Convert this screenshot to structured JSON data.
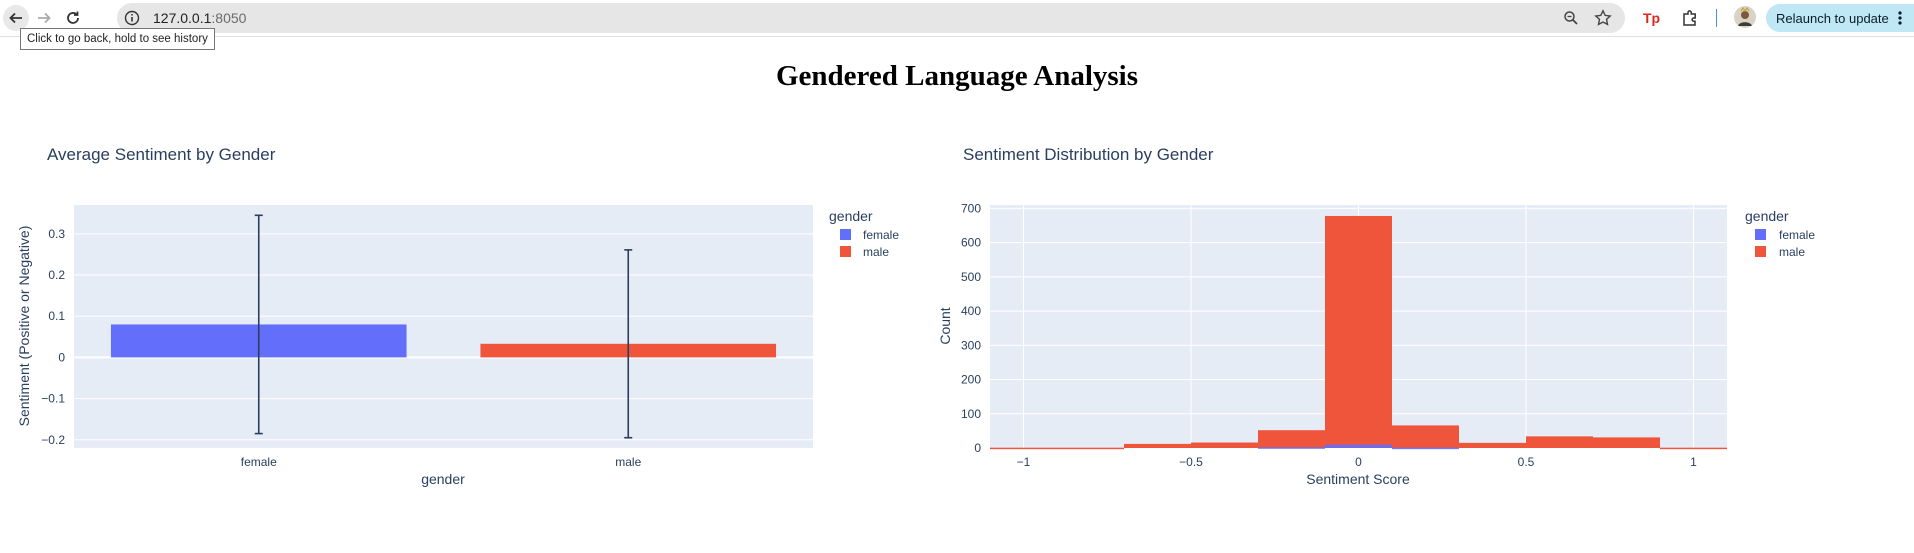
{
  "browser": {
    "url_host": "127.0.0.1",
    "url_port": ":8050",
    "relaunch_label": "Relaunch to update",
    "back_tooltip": "Click to go back, hold to see history"
  },
  "page": {
    "title": "Gendered Language Analysis"
  },
  "colors": {
    "female": "#636efa",
    "male": "#ef553b",
    "plot_bg": "#e5ecf6",
    "text": "#2a3f5f"
  },
  "chart_data": [
    {
      "type": "bar",
      "title": "Average Sentiment by Gender",
      "xlabel": "gender",
      "ylabel": "Sentiment (Positive or Negative)",
      "categories": [
        "female",
        "male"
      ],
      "series": [
        {
          "name": "female",
          "values": [
            0.08,
            null
          ],
          "error": [
            0.265,
            null
          ]
        },
        {
          "name": "male",
          "values": [
            null,
            0.033
          ],
          "error": [
            null,
            0.228
          ]
        }
      ],
      "ylim": [
        -0.22,
        0.37
      ],
      "yticks": [
        -0.2,
        -0.1,
        0,
        0.1,
        0.2,
        0.3
      ],
      "ytick_labels": [
        "−0.2",
        "−0.1",
        "0",
        "0.1",
        "0.2",
        "0.3"
      ],
      "legend_title": "gender",
      "legend": [
        "female",
        "male"
      ],
      "legend_position": "right",
      "grid": true
    },
    {
      "type": "bar",
      "title": "Sentiment Distribution by Gender",
      "xlabel": "Sentiment Score",
      "ylabel": "Count",
      "bins": [
        {
          "x0": -1.1,
          "x1": -0.9,
          "male": 1,
          "female": 0
        },
        {
          "x0": -0.9,
          "x1": -0.7,
          "male": 1,
          "female": 0
        },
        {
          "x0": -0.7,
          "x1": -0.5,
          "male": 12,
          "female": 0
        },
        {
          "x0": -0.5,
          "x1": -0.3,
          "male": 16,
          "female": 0
        },
        {
          "x0": -0.3,
          "x1": -0.1,
          "male": 52,
          "female": 2
        },
        {
          "x0": -0.1,
          "x1": 0.1,
          "male": 678,
          "female": 10
        },
        {
          "x0": 0.1,
          "x1": 0.3,
          "male": 66,
          "female": 1
        },
        {
          "x0": 0.3,
          "x1": 0.5,
          "male": 15,
          "female": 0
        },
        {
          "x0": 0.5,
          "x1": 0.7,
          "male": 34,
          "female": 0
        },
        {
          "x0": 0.7,
          "x1": 0.9,
          "male": 31,
          "female": 0
        },
        {
          "x0": 0.9,
          "x1": 1.1,
          "male": 1,
          "female": 0
        }
      ],
      "xlim": [
        -1.1,
        1.1
      ],
      "ylim": [
        0,
        710
      ],
      "xticks": [
        -1,
        -0.5,
        0,
        0.5,
        1
      ],
      "xtick_labels": [
        "−1",
        "−0.5",
        "0",
        "0.5",
        "1"
      ],
      "yticks": [
        0,
        100,
        200,
        300,
        400,
        500,
        600,
        700
      ],
      "ytick_labels": [
        "0",
        "100",
        "200",
        "300",
        "400",
        "500",
        "600",
        "700"
      ],
      "legend_title": "gender",
      "legend": [
        "female",
        "male"
      ],
      "legend_position": "right",
      "grid": true
    }
  ]
}
